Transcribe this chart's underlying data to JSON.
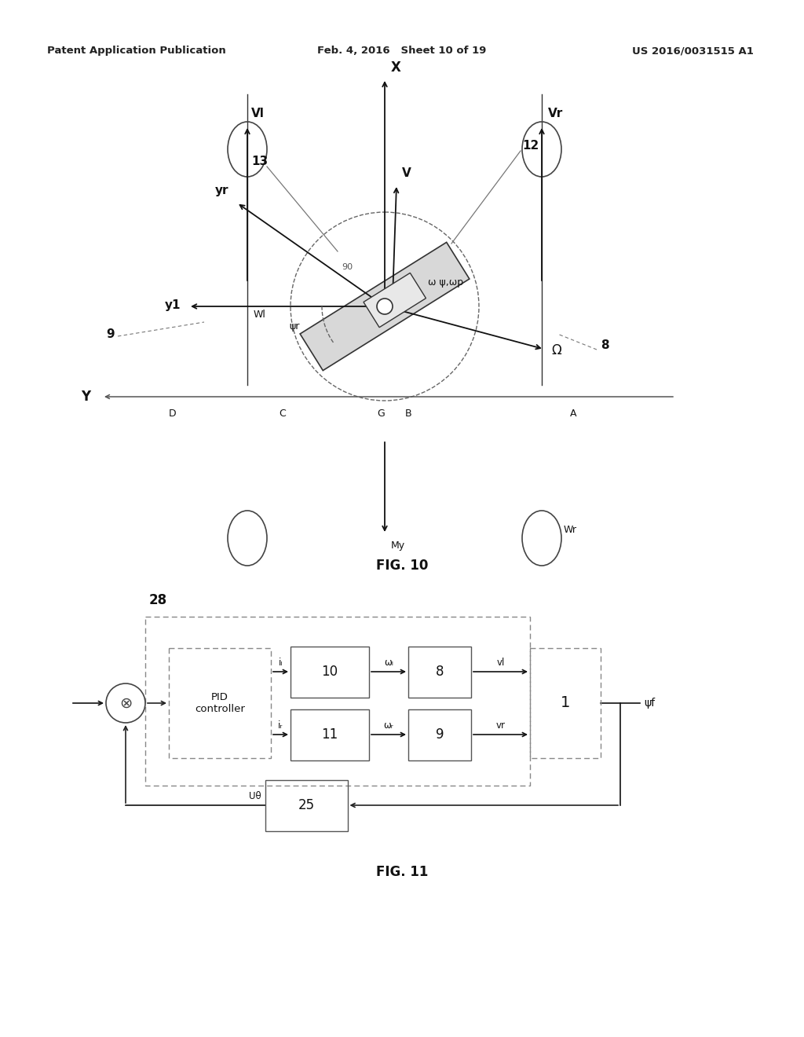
{
  "header_left": "Patent Application Publication",
  "header_mid": "Feb. 4, 2016   Sheet 10 of 19",
  "header_right": "US 2016/0031515 A1",
  "fig10_caption": "FIG. 10",
  "fig11_caption": "FIG. 11",
  "bg_color": "#ffffff",
  "line_color": "#111111"
}
